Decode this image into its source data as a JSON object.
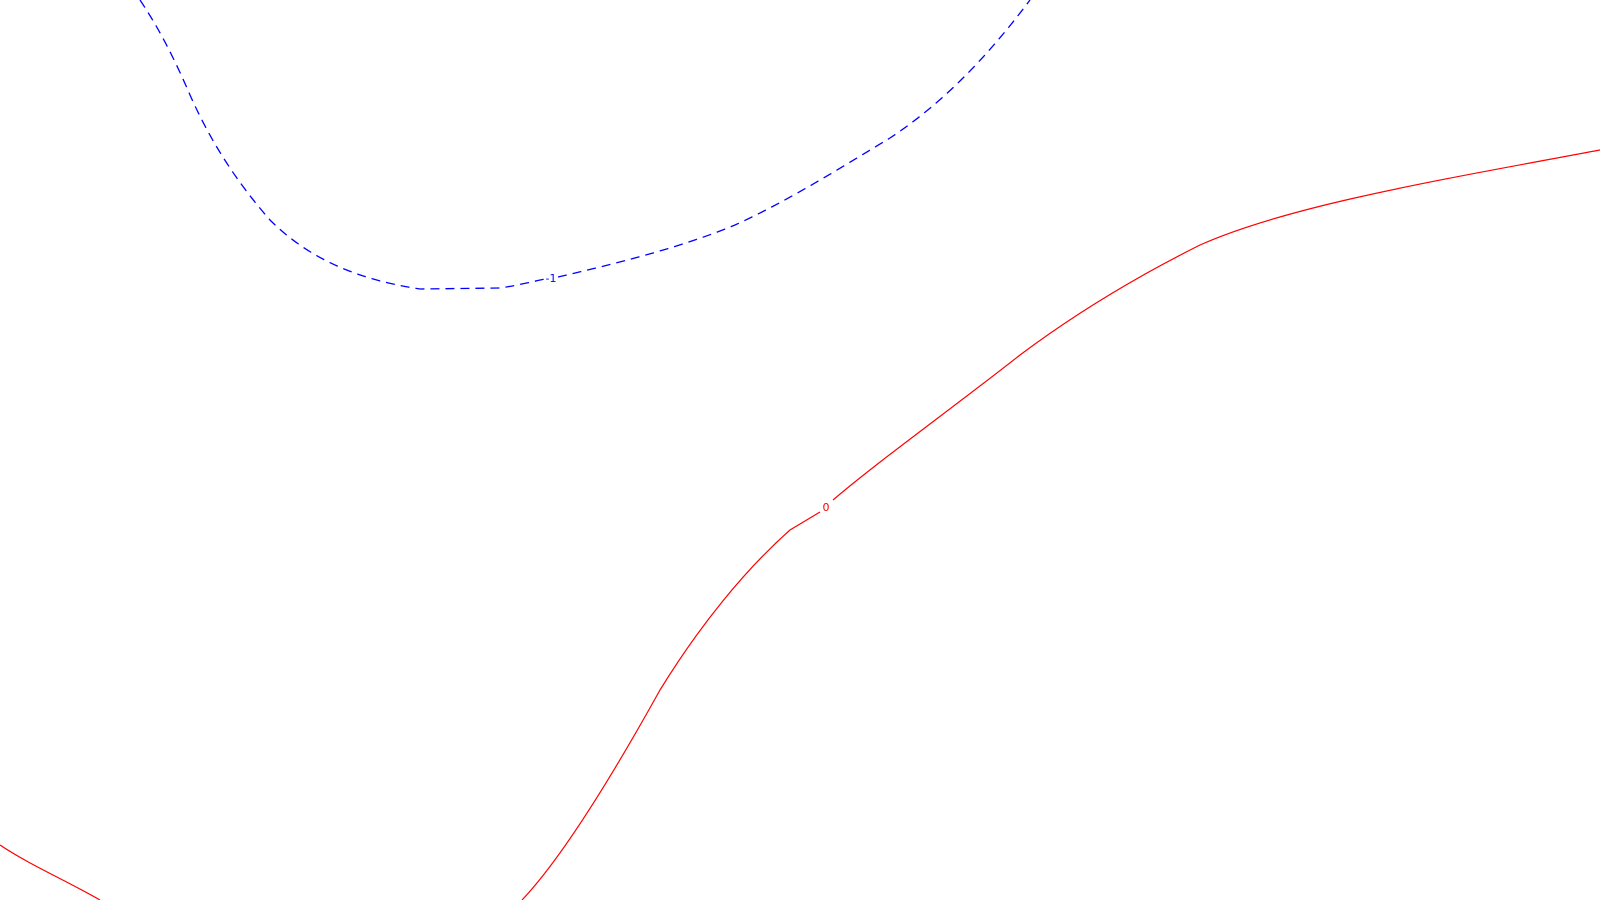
{
  "contours": [
    {
      "id": "neg1",
      "level": -1,
      "label": "-1",
      "color": "#0000ff",
      "style": "dashed"
    },
    {
      "id": "zero",
      "level": 0,
      "label": "0",
      "color": "#ff0000",
      "style": "solid"
    }
  ]
}
